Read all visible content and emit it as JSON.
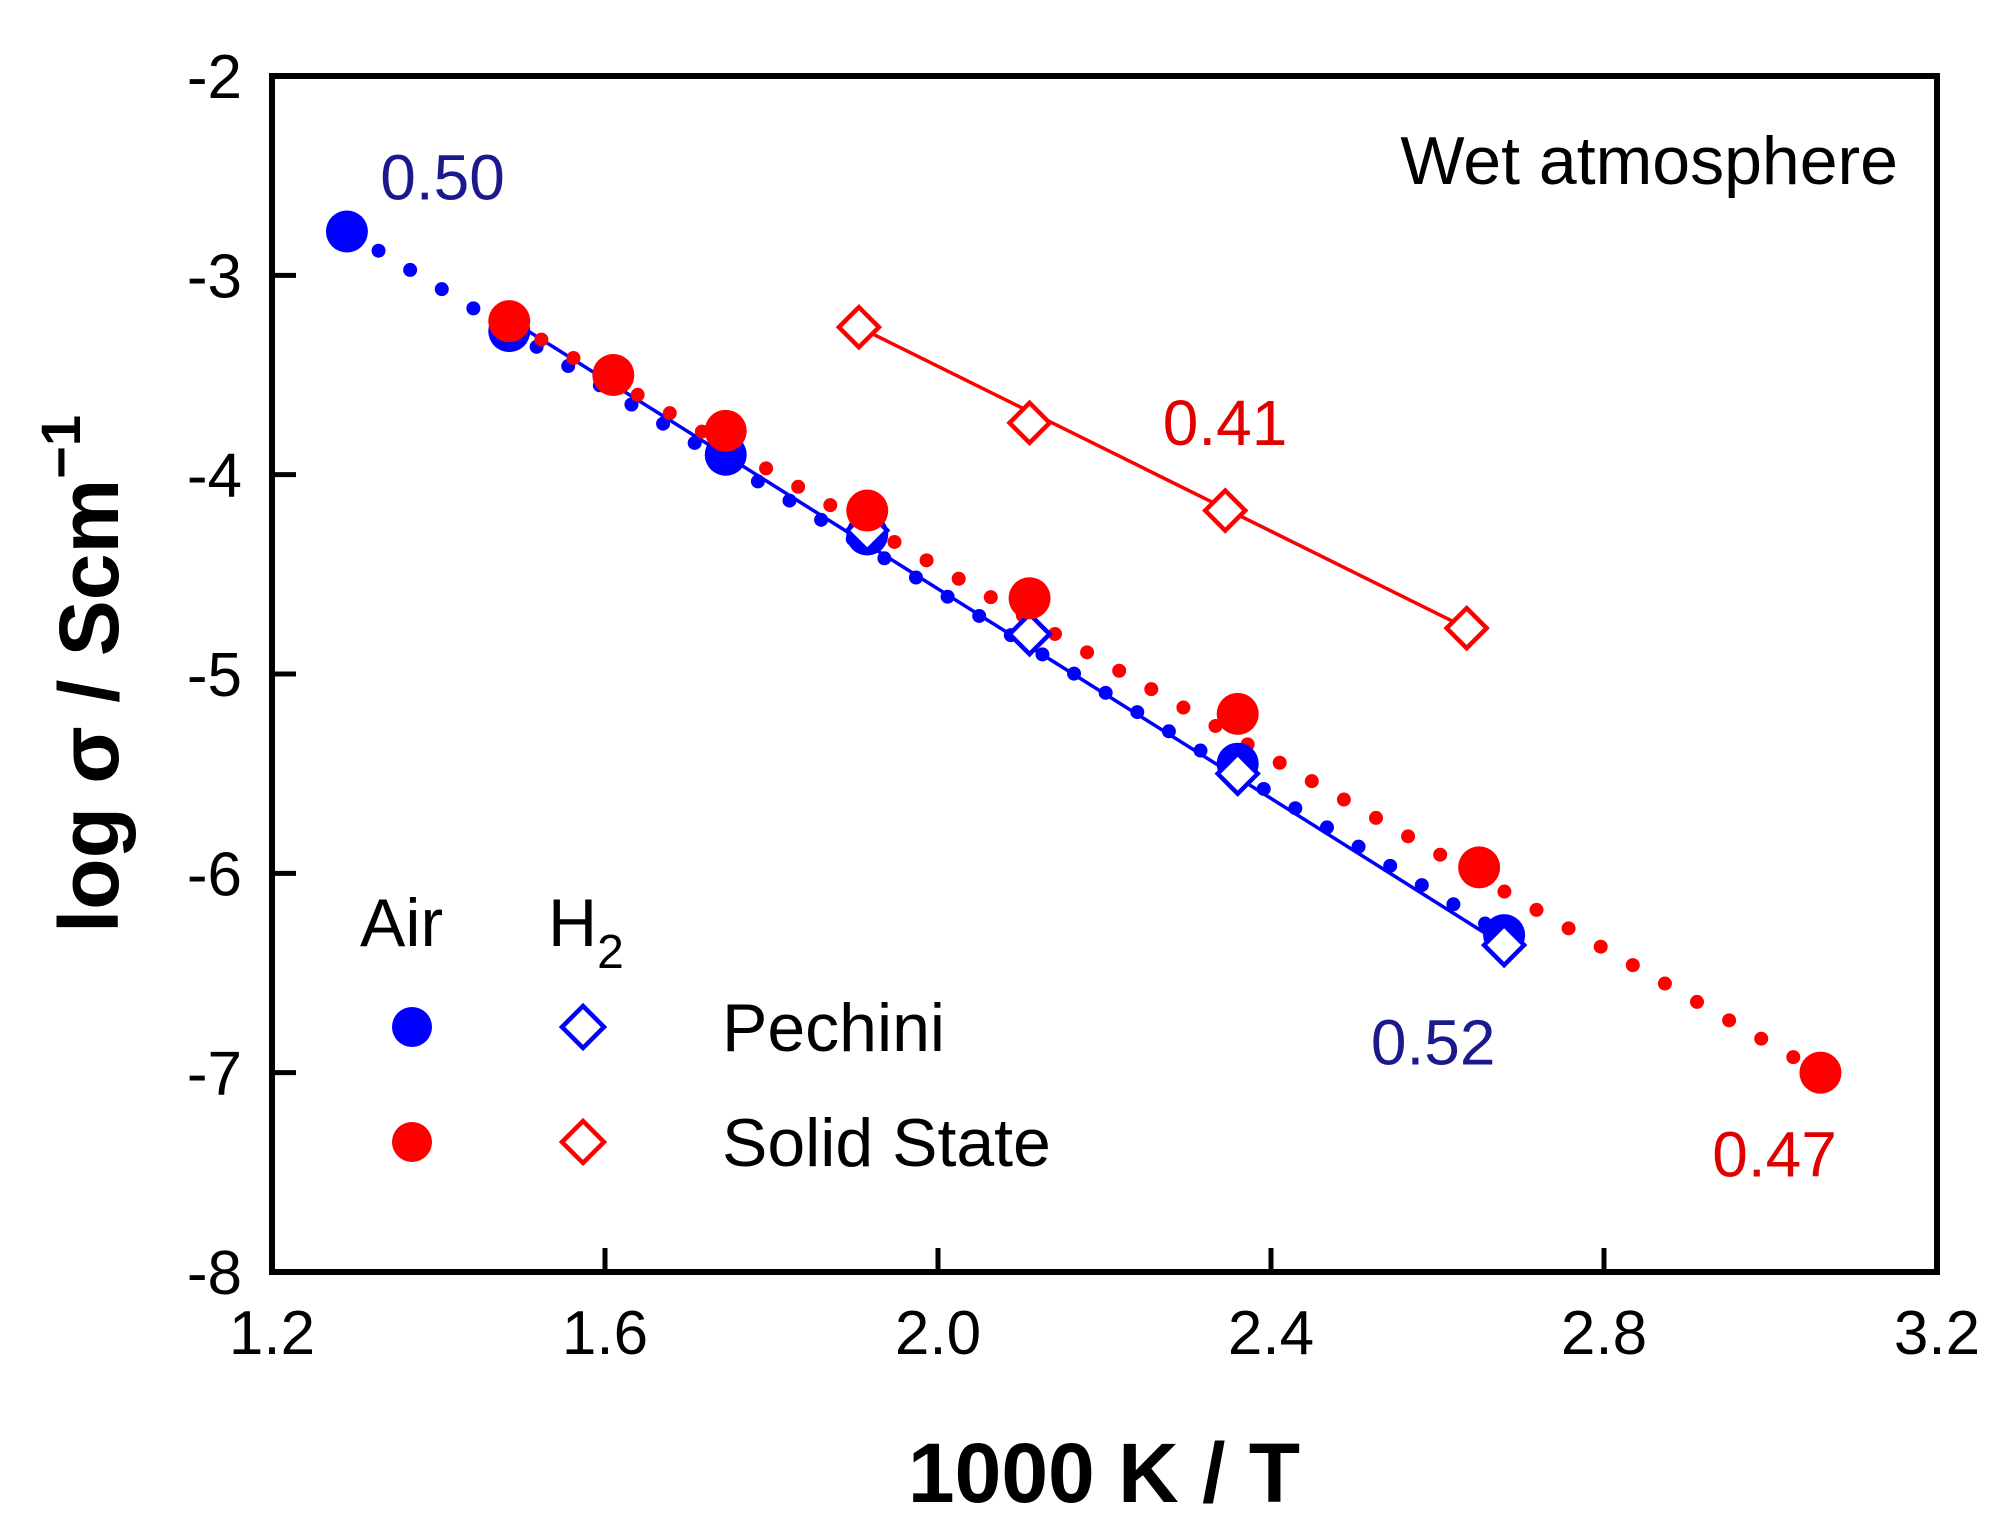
{
  "chart_data": {
    "type": "scatter",
    "title": "",
    "xlabel": "1000 K / T",
    "ylabel_main": "log σ / Scm",
    "ylabel_sup": "−1",
    "xlim": [
      1.2,
      3.2
    ],
    "ylim": [
      -8,
      -2
    ],
    "xticks": [
      1.2,
      1.6,
      2.0,
      2.4,
      2.8,
      3.2
    ],
    "xtick_labels": [
      "1.2",
      "1.6",
      "2.0",
      "2.4",
      "2.8",
      "3.2"
    ],
    "yticks": [
      -2,
      -3,
      -4,
      -5,
      -6,
      -7,
      -8
    ],
    "ytick_labels": [
      "-2",
      "-3",
      "-4",
      "-5",
      "-6",
      "-7",
      "-8"
    ],
    "colors": {
      "blue": "#0000ff",
      "dark_blue": "#1a1a8c",
      "red": "#ff0000",
      "dark_red": "#e00000"
    },
    "series": [
      {
        "name": "Pechini, Air",
        "marker": "filled-circle",
        "color": "#0000ff",
        "x": [
          1.29,
          1.485,
          1.745,
          1.915,
          2.36,
          2.68
        ],
        "y": [
          -2.78,
          -3.28,
          -3.9,
          -4.3,
          -5.45,
          -6.31
        ],
        "fit": {
          "style": "dotted",
          "x": [
            1.29,
            2.68
          ],
          "y": [
            -2.78,
            -6.31
          ]
        }
      },
      {
        "name": "Pechini, H2",
        "marker": "open-diamond",
        "color": "#0000ff",
        "x": [
          1.915,
          2.11,
          2.36,
          2.68
        ],
        "y": [
          -4.28,
          -4.8,
          -5.5,
          -6.36
        ],
        "fit": {
          "style": "solid",
          "x": [
            1.485,
            2.68
          ],
          "y": [
            -3.22,
            -6.36
          ]
        }
      },
      {
        "name": "Solid State, Air",
        "marker": "filled-circle",
        "color": "#ff0000",
        "x": [
          1.485,
          1.61,
          1.745,
          1.915,
          2.11,
          2.36,
          2.65,
          3.06
        ],
        "y": [
          -3.23,
          -3.5,
          -3.78,
          -4.18,
          -4.62,
          -5.2,
          -5.97,
          -7.0
        ],
        "fit": {
          "style": "dotted",
          "x": [
            1.485,
            3.06
          ],
          "y": [
            -3.23,
            -7.0
          ]
        }
      },
      {
        "name": "Solid State, H2",
        "marker": "open-diamond",
        "color": "#ff0000",
        "x": [
          1.905,
          2.11,
          2.345,
          2.635
        ],
        "y": [
          -3.26,
          -3.74,
          -4.18,
          -4.77
        ],
        "fit": {
          "style": "solid",
          "x": [
            1.905,
            2.635
          ],
          "y": [
            -3.26,
            -4.77
          ]
        }
      }
    ],
    "annotations": [
      {
        "id": "ea-pechini-air",
        "text": "0.50",
        "color": "#1a1a8c",
        "x": 1.33,
        "y": -2.62
      },
      {
        "id": "ea-solid-h2",
        "text": "0.41",
        "color": "#e00000",
        "x": 2.27,
        "y": -3.85
      },
      {
        "id": "ea-pechini-h2",
        "text": "0.52",
        "color": "#1a1a8c",
        "x": 2.52,
        "y": -6.96
      },
      {
        "id": "ea-solid-air",
        "text": "0.47",
        "color": "#e00000",
        "x": 2.93,
        "y": -7.52
      }
    ],
    "corner_label": "Wet atmosphere",
    "legend": {
      "position": "bottom-left",
      "col_headers": [
        "Air",
        "H",
        "2"
      ],
      "rows": [
        {
          "label": "Pechini",
          "color": "#0000ff"
        },
        {
          "label": "Solid State",
          "color": "#ff0000"
        }
      ]
    }
  }
}
